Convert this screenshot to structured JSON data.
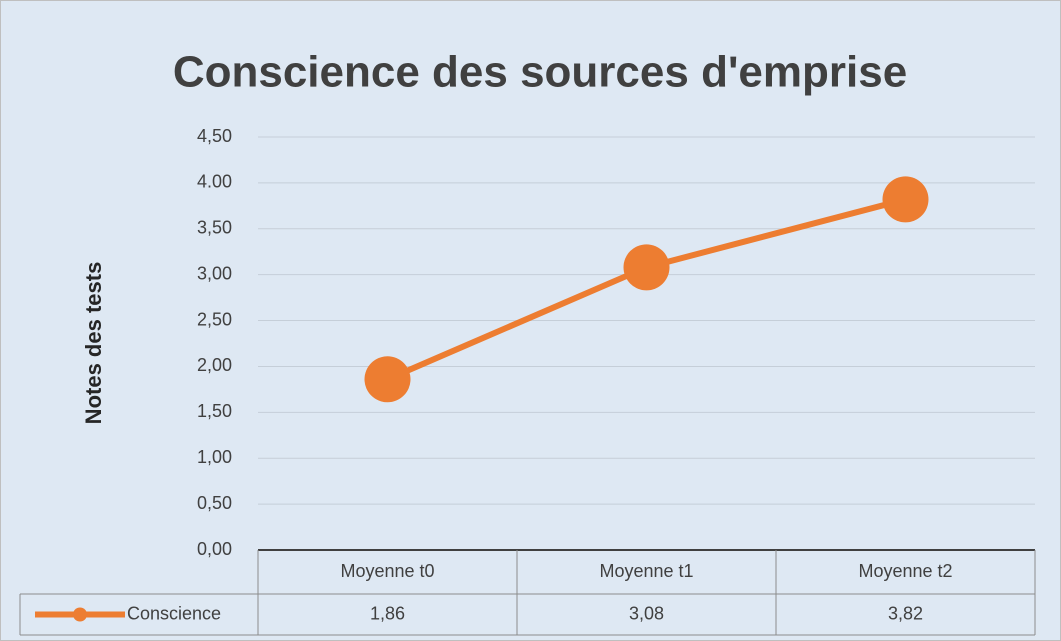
{
  "chart_data": {
    "type": "line",
    "title": "Conscience des sources d'emprise",
    "y_label": "Notes des tests",
    "categories": [
      "Moyenne t0",
      "Moyenne t1",
      "Moyenne t2"
    ],
    "series": [
      {
        "name": "Conscience",
        "color": "#ed7d31",
        "values": [
          1.86,
          3.08,
          3.82
        ],
        "value_labels": [
          "1,86",
          "3,08",
          "3,82"
        ]
      }
    ],
    "ylim": [
      0,
      4.5
    ],
    "yticks": [
      {
        "value": 0,
        "label": "0,00"
      },
      {
        "value": 0.5,
        "label": "0,50"
      },
      {
        "value": 1,
        "label": "1,00"
      },
      {
        "value": 1.5,
        "label": "1,50"
      },
      {
        "value": 2,
        "label": "2,00"
      },
      {
        "value": 2.5,
        "label": "2,50"
      },
      {
        "value": 3,
        "label": "3,00"
      },
      {
        "value": 3.5,
        "label": "3,50"
      },
      {
        "value": 4,
        "label": "4.00"
      },
      {
        "value": 4.5,
        "label": "4,50"
      }
    ],
    "grid": true,
    "data_table": true
  }
}
